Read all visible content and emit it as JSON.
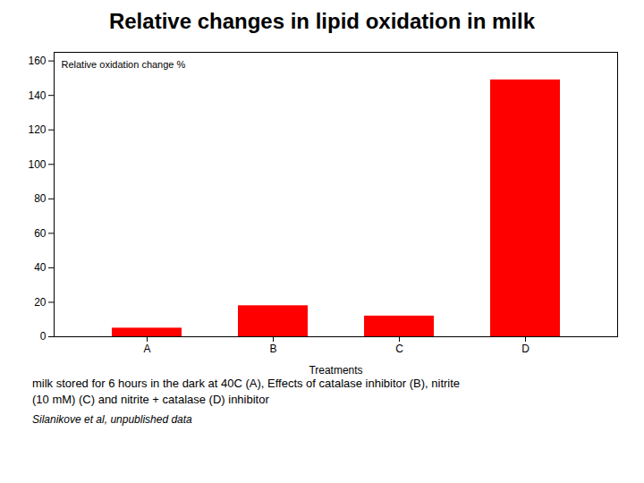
{
  "chart_data": {
    "type": "bar",
    "title": "Relative changes in lipid oxidation in milk",
    "xlabel": "Treatments",
    "categories": [
      "A",
      "B",
      "C",
      "D"
    ],
    "values": [
      5,
      18,
      12,
      149
    ],
    "color": "#ff0000",
    "ylim": [
      0,
      165
    ],
    "yticks": [
      0,
      20,
      40,
      60,
      80,
      100,
      120,
      140,
      160
    ],
    "grid": false,
    "annotation": "Relative oxidation change %",
    "subtitle": [
      "milk stored for 6 hours in the dark at 40C (A), Effects of catalase inhibitor (B), nitrite",
      "(10 mM) (C) and nitrite + catalase (D) inhibitor"
    ],
    "footnote": "Silanikove et al, unpublished data"
  }
}
